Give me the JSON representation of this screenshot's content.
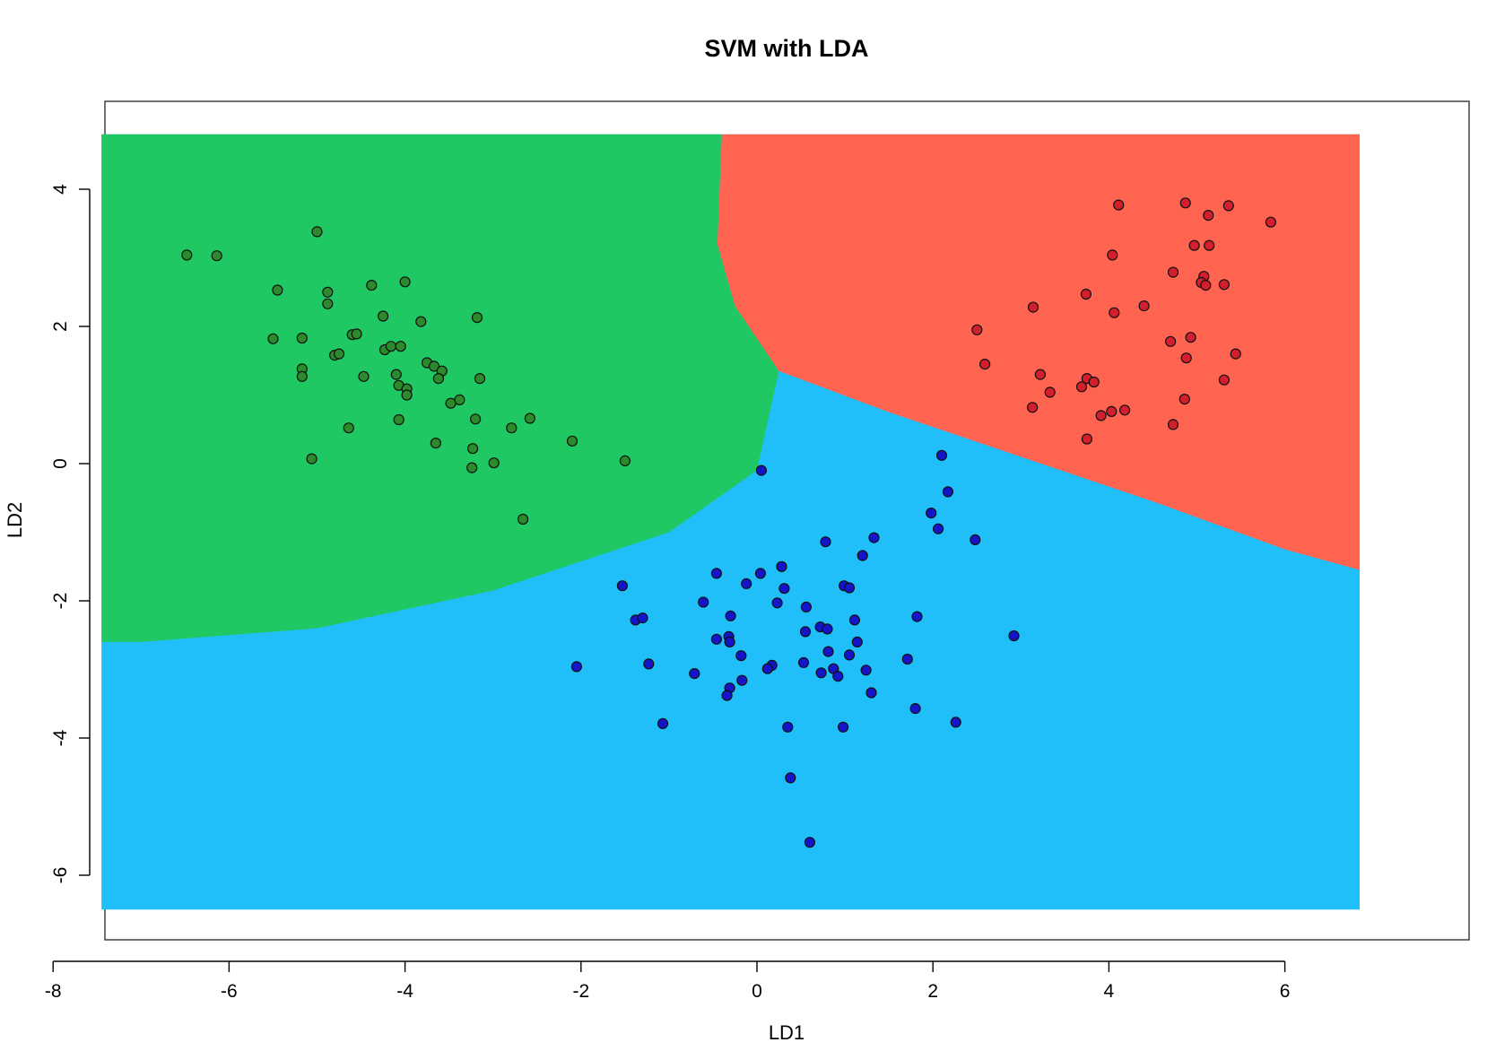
{
  "chart_data": {
    "type": "scatter",
    "title": "SVM with LDA",
    "xlabel": "LD1",
    "ylabel": "LD2",
    "xlim": [
      -8,
      7.3
    ],
    "ylim": [
      -7,
      5.2
    ],
    "xticks": [
      -8,
      -6,
      -4,
      -2,
      0,
      2,
      4,
      6
    ],
    "yticks": [
      -6,
      -4,
      -2,
      0,
      2,
      4
    ],
    "grid": false,
    "regions": {
      "x_range": [
        -7.45,
        6.85
      ],
      "y_range": [
        -6.5,
        4.8
      ],
      "colors": [
        "#20c864",
        "#ff6450",
        "#20bffa"
      ],
      "boundaries": {
        "green_blue": [
          [
            -7.45,
            -2.6
          ],
          [
            -7,
            -2.6
          ],
          [
            -5,
            -2.4
          ],
          [
            -3,
            -1.85
          ],
          [
            -1,
            -1.0
          ],
          [
            0,
            -0.1
          ],
          [
            0.25,
            1.35
          ]
        ],
        "red_blue": [
          [
            0.25,
            1.35
          ],
          [
            1.5,
            0.75
          ],
          [
            3,
            0.1
          ],
          [
            4.5,
            -0.55
          ],
          [
            6.0,
            -1.25
          ],
          [
            6.85,
            -1.55
          ]
        ],
        "green_red": [
          [
            0.25,
            1.35
          ],
          [
            -0.25,
            2.3
          ],
          [
            -0.45,
            3.2
          ],
          [
            -0.4,
            4.8
          ]
        ]
      }
    },
    "series": [
      {
        "color": "#2b8a2b",
        "points": [
          [
            -6.48,
            3.04
          ],
          [
            -6.14,
            3.03
          ],
          [
            -5.45,
            2.53
          ],
          [
            -5.0,
            3.38
          ],
          [
            -5.5,
            1.82
          ],
          [
            -5.17,
            1.83
          ],
          [
            -5.17,
            1.38
          ],
          [
            -5.17,
            1.27
          ],
          [
            -4.88,
            2.5
          ],
          [
            -4.88,
            2.33
          ],
          [
            -4.38,
            2.6
          ],
          [
            -4.0,
            2.65
          ],
          [
            -4.25,
            2.15
          ],
          [
            -3.82,
            2.07
          ],
          [
            -3.18,
            2.13
          ],
          [
            -4.6,
            1.88
          ],
          [
            -4.55,
            1.89
          ],
          [
            -4.8,
            1.58
          ],
          [
            -4.75,
            1.6
          ],
          [
            -4.23,
            1.66
          ],
          [
            -4.16,
            1.71
          ],
          [
            -4.05,
            1.71
          ],
          [
            -3.75,
            1.47
          ],
          [
            -3.67,
            1.42
          ],
          [
            -3.58,
            1.35
          ],
          [
            -4.1,
            1.3
          ],
          [
            -3.62,
            1.24
          ],
          [
            -3.15,
            1.24
          ],
          [
            -4.47,
            1.27
          ],
          [
            -4.07,
            1.14
          ],
          [
            -3.98,
            1.09
          ],
          [
            -3.98,
            1.0
          ],
          [
            -3.38,
            0.93
          ],
          [
            -3.48,
            0.88
          ],
          [
            -4.07,
            0.64
          ],
          [
            -3.2,
            0.65
          ],
          [
            -2.58,
            0.66
          ],
          [
            -4.64,
            0.52
          ],
          [
            -2.79,
            0.52
          ],
          [
            -3.65,
            0.3
          ],
          [
            -3.23,
            0.22
          ],
          [
            -5.06,
            0.07
          ],
          [
            -2.1,
            0.33
          ],
          [
            -1.5,
            0.04
          ],
          [
            -2.99,
            0.01
          ],
          [
            -3.24,
            -0.06
          ],
          [
            -2.66,
            -0.81
          ]
        ]
      },
      {
        "color": "#d21e2d",
        "points": [
          [
            4.11,
            3.77
          ],
          [
            4.87,
            3.8
          ],
          [
            5.36,
            3.76
          ],
          [
            5.84,
            3.52
          ],
          [
            5.13,
            3.62
          ],
          [
            4.97,
            3.18
          ],
          [
            5.14,
            3.18
          ],
          [
            4.04,
            3.04
          ],
          [
            4.73,
            2.79
          ],
          [
            5.08,
            2.73
          ],
          [
            5.05,
            2.64
          ],
          [
            5.1,
            2.6
          ],
          [
            5.31,
            2.61
          ],
          [
            3.74,
            2.47
          ],
          [
            3.14,
            2.28
          ],
          [
            4.06,
            2.2
          ],
          [
            4.4,
            2.3
          ],
          [
            2.5,
            1.95
          ],
          [
            4.93,
            1.84
          ],
          [
            4.7,
            1.78
          ],
          [
            5.44,
            1.6
          ],
          [
            4.88,
            1.54
          ],
          [
            2.59,
            1.45
          ],
          [
            3.22,
            1.3
          ],
          [
            3.75,
            1.24
          ],
          [
            3.83,
            1.19
          ],
          [
            3.69,
            1.12
          ],
          [
            5.31,
            1.22
          ],
          [
            3.33,
            1.04
          ],
          [
            4.86,
            0.94
          ],
          [
            3.13,
            0.82
          ],
          [
            4.18,
            0.78
          ],
          [
            4.03,
            0.76
          ],
          [
            3.91,
            0.7
          ],
          [
            4.73,
            0.57
          ],
          [
            3.75,
            0.36
          ]
        ]
      },
      {
        "color": "#1414c8",
        "points": [
          [
            2.1,
            0.12
          ],
          [
            0.05,
            -0.1
          ],
          [
            2.17,
            -0.41
          ],
          [
            1.98,
            -0.72
          ],
          [
            2.06,
            -0.95
          ],
          [
            2.48,
            -1.11
          ],
          [
            1.33,
            -1.08
          ],
          [
            0.78,
            -1.14
          ],
          [
            1.2,
            -1.34
          ],
          [
            0.28,
            -1.5
          ],
          [
            -0.46,
            -1.6
          ],
          [
            0.04,
            -1.6
          ],
          [
            -0.12,
            -1.75
          ],
          [
            -1.53,
            -1.78
          ],
          [
            0.31,
            -1.82
          ],
          [
            0.99,
            -1.78
          ],
          [
            1.05,
            -1.81
          ],
          [
            -0.61,
            -2.02
          ],
          [
            0.23,
            -2.03
          ],
          [
            0.56,
            -2.09
          ],
          [
            -0.3,
            -2.22
          ],
          [
            1.11,
            -2.28
          ],
          [
            -1.38,
            -2.28
          ],
          [
            -1.3,
            -2.25
          ],
          [
            1.82,
            -2.23
          ],
          [
            0.72,
            -2.38
          ],
          [
            0.8,
            -2.41
          ],
          [
            0.55,
            -2.45
          ],
          [
            -0.32,
            -2.52
          ],
          [
            -0.46,
            -2.56
          ],
          [
            -0.31,
            -2.6
          ],
          [
            1.14,
            -2.6
          ],
          [
            2.92,
            -2.51
          ],
          [
            0.81,
            -2.74
          ],
          [
            1.05,
            -2.79
          ],
          [
            -0.18,
            -2.8
          ],
          [
            1.71,
            -2.85
          ],
          [
            -1.23,
            -2.92
          ],
          [
            0.53,
            -2.9
          ],
          [
            0.17,
            -2.94
          ],
          [
            0.12,
            -2.99
          ],
          [
            0.87,
            -2.99
          ],
          [
            -2.05,
            -2.96
          ],
          [
            1.24,
            -3.01
          ],
          [
            0.73,
            -3.05
          ],
          [
            0.92,
            -3.1
          ],
          [
            -0.71,
            -3.06
          ],
          [
            -0.17,
            -3.16
          ],
          [
            -0.31,
            -3.27
          ],
          [
            1.3,
            -3.34
          ],
          [
            -0.34,
            -3.38
          ],
          [
            1.8,
            -3.57
          ],
          [
            2.26,
            -3.77
          ],
          [
            -1.07,
            -3.79
          ],
          [
            0.35,
            -3.84
          ],
          [
            0.98,
            -3.84
          ],
          [
            0.38,
            -4.58
          ],
          [
            0.6,
            -5.52
          ]
        ]
      }
    ]
  }
}
